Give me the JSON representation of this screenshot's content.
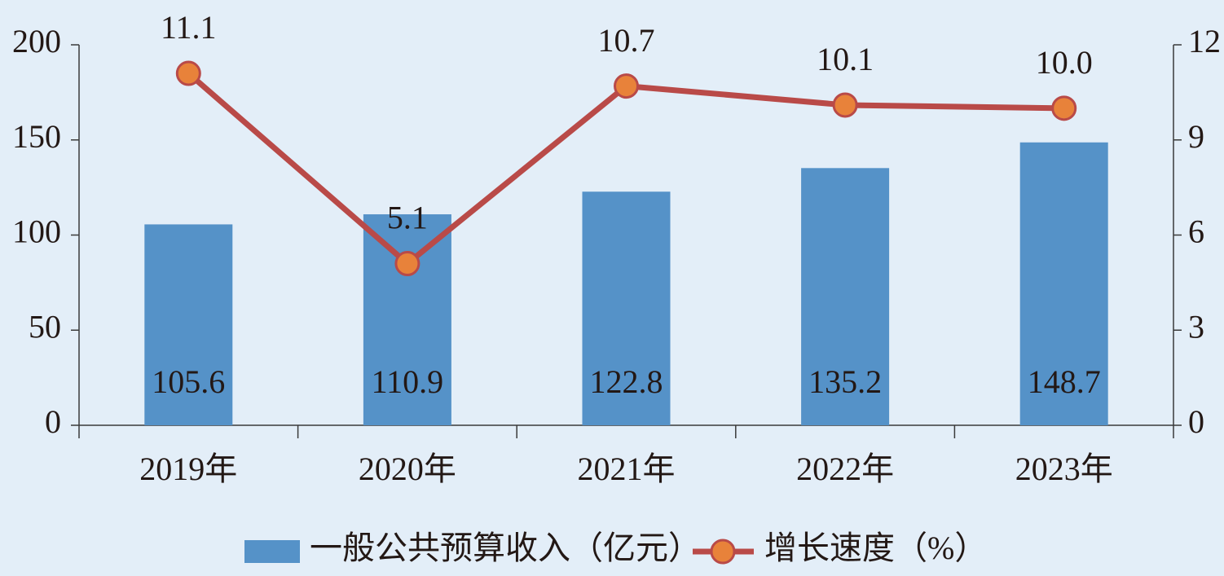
{
  "chart_data": {
    "type": "bar",
    "categories": [
      "2019年",
      "2020年",
      "2021年",
      "2022年",
      "2023年"
    ],
    "series": [
      {
        "name": "一般公共预算收入（亿元）",
        "type": "bar",
        "color": "#5592c8",
        "values": [
          105.6,
          110.9,
          122.8,
          135.2,
          148.7
        ]
      },
      {
        "name": "增长速度（%）",
        "type": "line",
        "axis": "y2",
        "color": "#b94a48",
        "marker_color": "#e8823a",
        "values": [
          11.1,
          5.1,
          10.7,
          10.1,
          10.0
        ],
        "value_labels": [
          "11.1",
          "5.1",
          "10.7",
          "10.1",
          "10.0"
        ]
      }
    ],
    "ylim": [
      0,
      200
    ],
    "yticks": [
      0,
      50,
      100,
      150,
      200
    ],
    "y2lim": [
      0,
      12
    ],
    "y2ticks": [
      0,
      3,
      6,
      9,
      12
    ],
    "legend": "bottom"
  }
}
